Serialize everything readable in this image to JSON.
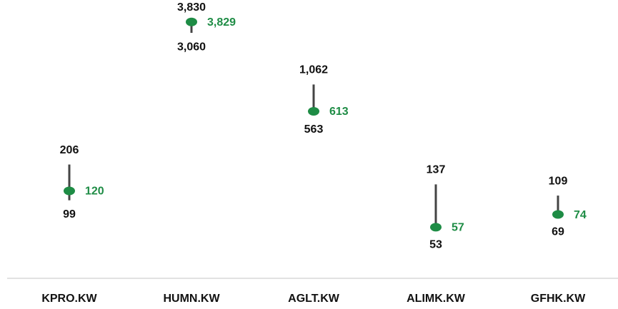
{
  "chart_data": {
    "type": "hilo",
    "categories": [
      "KPRO.KW",
      "HUMN.KW",
      "AGLT.KW",
      "ALIMK.KW",
      "GFHK.KW"
    ],
    "high": {
      "values": [
        206,
        3830,
        1062,
        137,
        109
      ],
      "value_labels": [
        "206",
        "3,830",
        "1,062",
        "137",
        "109"
      ],
      "color": "#111111"
    },
    "low": {
      "values": [
        99,
        3060,
        563,
        53,
        69
      ],
      "value_labels": [
        "99",
        "3,060",
        "563",
        "53",
        "69"
      ],
      "color": "#111111"
    },
    "current": {
      "values": [
        120,
        3829,
        613,
        57,
        74
      ],
      "value_labels": [
        "120",
        "3,829",
        "613",
        "57",
        "74"
      ],
      "color": "#1e8c45"
    },
    "range_color": "#444444",
    "ylim": [
      20,
      6000
    ],
    "log_scale": true
  }
}
